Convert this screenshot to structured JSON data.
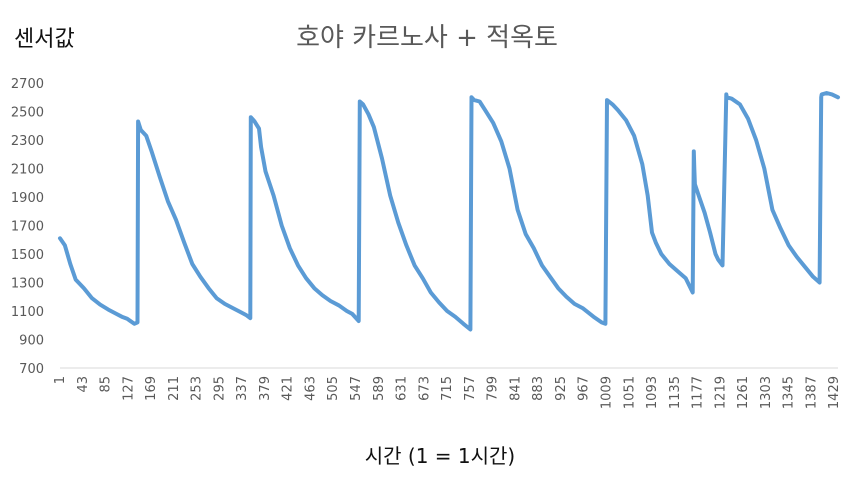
{
  "chart_data": {
    "type": "line",
    "title": "호야 카르노사 + 적옥토",
    "ylabel": "센서값",
    "xlabel": "시간 (1 = 1시간)",
    "ylim": [
      700,
      2700
    ],
    "yticks": [
      700,
      900,
      1100,
      1300,
      1500,
      1700,
      1900,
      2100,
      2300,
      2500,
      2700
    ],
    "xlim": [
      1,
      1436
    ],
    "xticks": [
      1,
      43,
      85,
      127,
      169,
      211,
      253,
      295,
      337,
      379,
      421,
      463,
      505,
      547,
      589,
      631,
      673,
      715,
      757,
      799,
      841,
      883,
      925,
      967,
      1009,
      1051,
      1093,
      1135,
      1177,
      1219,
      1261,
      1303,
      1345,
      1387,
      1429
    ],
    "grid": false,
    "legend": "none",
    "color": "#5B9BD5",
    "series": [
      {
        "x": [
          1,
          10,
          20,
          30,
          45,
          60,
          75,
          90,
          105,
          115,
          125,
          138,
          144,
          145,
          150,
          160,
          170,
          185,
          200,
          215,
          230,
          245,
          260,
          275,
          290,
          305,
          320,
          335,
          345,
          352,
          353,
          360,
          368,
          372,
          380,
          395,
          410,
          425,
          440,
          455,
          470,
          485,
          500,
          515,
          530,
          540,
          552,
          554,
          560,
          570,
          580,
          595,
          610,
          625,
          640,
          655,
          670,
          685,
          700,
          715,
          730,
          745,
          758,
          760,
          765,
          775,
          785,
          800,
          815,
          830,
          845,
          860,
          875,
          890,
          905,
          920,
          935,
          950,
          965,
          985,
          1000,
          1007,
          1010,
          1020,
          1030,
          1045,
          1060,
          1075,
          1085,
          1093,
          1100,
          1110,
          1125,
          1140,
          1155,
          1168,
          1170,
          1171,
          1172,
          1180,
          1190,
          1200,
          1210,
          1215,
          1223,
          1230,
          1231,
          1240,
          1255,
          1270,
          1285,
          1300,
          1315,
          1330,
          1345,
          1360,
          1375,
          1390,
          1402,
          1405,
          1406,
          1415,
          1425,
          1436
        ],
        "y": [
          1610,
          1560,
          1430,
          1320,
          1260,
          1190,
          1145,
          1110,
          1080,
          1060,
          1045,
          1010,
          1020,
          2430,
          2370,
          2330,
          2220,
          2040,
          1870,
          1740,
          1580,
          1430,
          1340,
          1260,
          1190,
          1150,
          1120,
          1090,
          1070,
          1050,
          2460,
          2430,
          2380,
          2250,
          2080,
          1910,
          1700,
          1540,
          1420,
          1330,
          1260,
          1210,
          1170,
          1140,
          1100,
          1080,
          1030,
          2570,
          2550,
          2480,
          2390,
          2170,
          1910,
          1720,
          1560,
          1420,
          1330,
          1230,
          1160,
          1100,
          1060,
          1010,
          970,
          2600,
          2580,
          2570,
          2510,
          2420,
          2290,
          2100,
          1810,
          1640,
          1540,
          1420,
          1340,
          1260,
          1200,
          1150,
          1120,
          1060,
          1020,
          1010,
          2580,
          2550,
          2510,
          2440,
          2330,
          2130,
          1910,
          1650,
          1580,
          1500,
          1430,
          1380,
          1330,
          1230,
          2220,
          2100,
          1990,
          1900,
          1790,
          1650,
          1500,
          1460,
          1420,
          2620,
          2600,
          2590,
          2550,
          2450,
          2300,
          2100,
          1810,
          1680,
          1560,
          1480,
          1410,
          1340,
          1300,
          2600,
          2620,
          2630,
          2620,
          2600
        ]
      }
    ]
  }
}
